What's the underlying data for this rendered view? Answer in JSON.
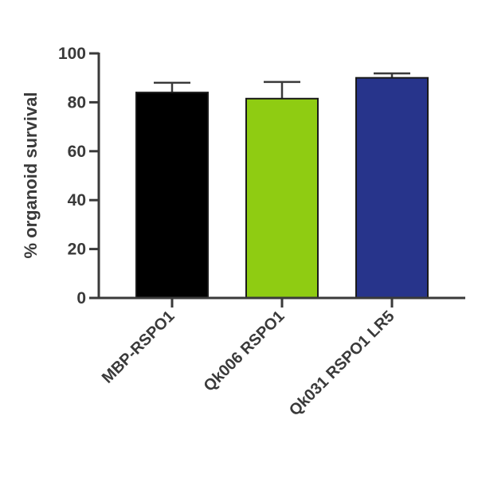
{
  "chart_data": {
    "type": "bar",
    "title": "",
    "xlabel": "",
    "ylabel": "% organoid survival",
    "ylim": [
      0,
      100
    ],
    "yticks": [
      0,
      20,
      40,
      60,
      80,
      100
    ],
    "ytick_labels": [
      "0",
      "20",
      "40",
      "60",
      "80",
      "100"
    ],
    "categories": [
      "MBP-RSPO1",
      "Qk006 RSPO1",
      "Qk031 RSPO1 LR5"
    ],
    "values": [
      84,
      81.5,
      90
    ],
    "error_upper": [
      4,
      6.8,
      1.8
    ],
    "colors": [
      "#000000",
      "#8fcc12",
      "#27348b"
    ],
    "grid": false,
    "legend": "none"
  }
}
